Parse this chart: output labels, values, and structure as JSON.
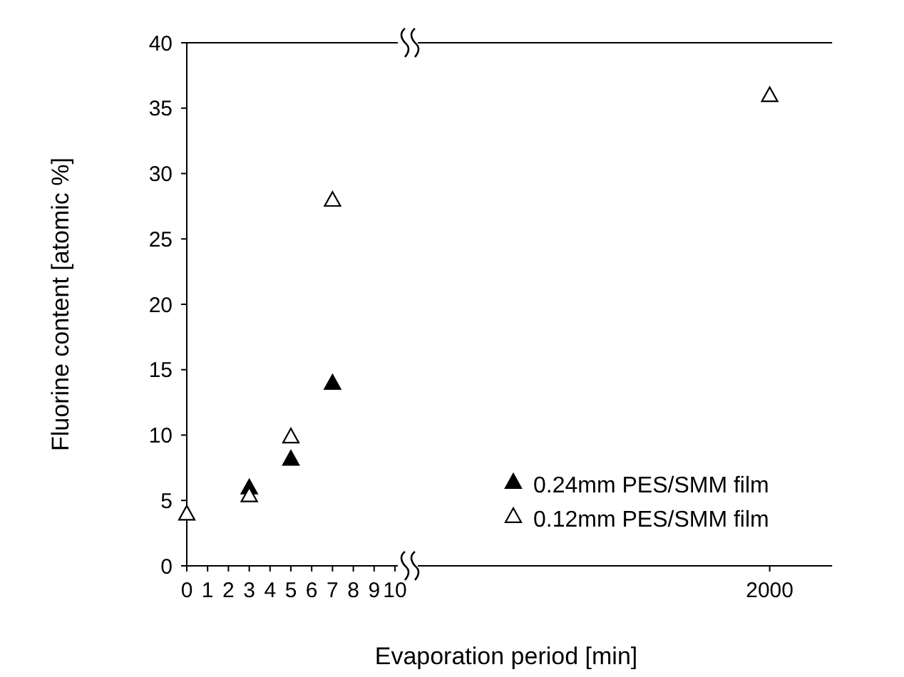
{
  "chart_data": {
    "type": "scatter",
    "xlabel": "Evaporation period [min]",
    "ylabel": "Fluorine content [atomic %]",
    "categories": [
      "0",
      "1",
      "2",
      "3",
      "4",
      "5",
      "6",
      "7",
      "8",
      "9",
      "10",
      null,
      null,
      null,
      null,
      null,
      null,
      null,
      null,
      null,
      null,
      null,
      null,
      null,
      null,
      null,
      null,
      null,
      "2000",
      null,
      null,
      null
    ],
    "series": [
      {
        "name": "0.24mm PES/SMM film",
        "color": "#000000",
        "values": [
          null,
          null,
          null,
          6,
          null,
          8.2,
          null,
          14,
          null,
          null,
          null,
          null,
          null,
          null,
          null,
          null,
          null,
          null,
          null,
          null,
          null,
          null,
          null,
          null,
          null,
          null,
          null,
          null,
          null,
          null,
          null,
          null
        ]
      },
      {
        "name": "0.12mm PES/SMM film",
        "color": "#ffffff",
        "values": [
          4,
          null,
          null,
          5.4,
          null,
          9.9,
          null,
          28,
          null,
          null,
          null,
          null,
          null,
          null,
          null,
          null,
          null,
          null,
          null,
          null,
          null,
          null,
          null,
          null,
          null,
          null,
          null,
          null,
          36,
          null,
          null,
          null
        ]
      }
    ],
    "ylim": [
      0,
      40
    ],
    "yticks": [
      0,
      5,
      10,
      15,
      20,
      25,
      30,
      35,
      40
    ],
    "marker": "triangle",
    "legend": "bottom right",
    "grid": false
  }
}
